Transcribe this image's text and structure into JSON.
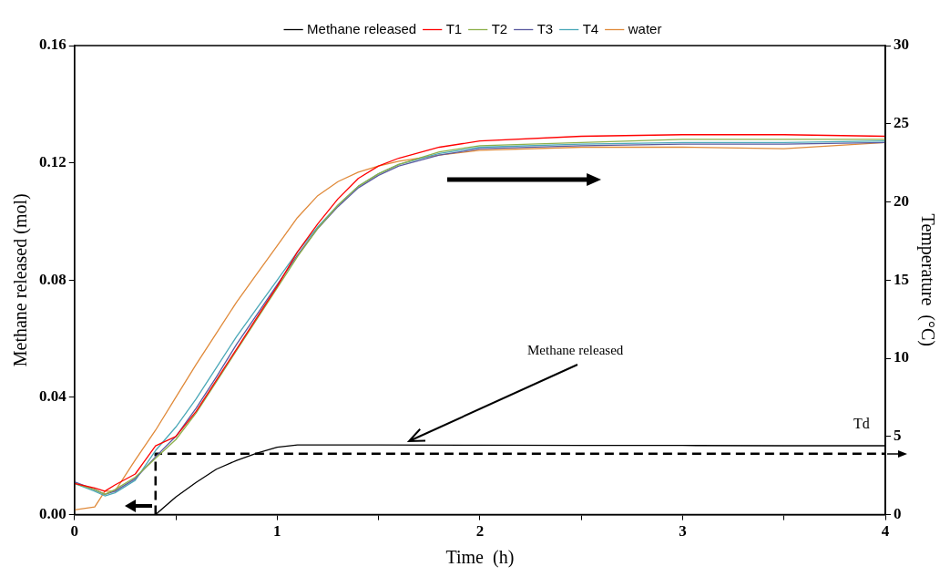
{
  "chart_data": {
    "type": "line",
    "xlabel": "Time  (h)",
    "ylabel": "Methane released (mol)",
    "y2label": "Temperature  (°C)",
    "x": [
      0,
      0.1,
      0.15,
      0.2,
      0.3,
      0.4,
      0.5,
      0.6,
      0.7,
      0.8,
      0.9,
      1.0,
      1.1,
      1.2,
      1.3,
      1.4,
      1.5,
      1.6,
      1.8,
      2.0,
      2.5,
      3.0,
      3.5,
      4.0
    ],
    "series": [
      {
        "name": "Methane released",
        "color": "#000000",
        "x": [
          0,
          0.4,
          0.5,
          0.6,
          0.7,
          0.8,
          0.9,
          1.0,
          1.1,
          1.5,
          2,
          2.5,
          3,
          3.5,
          4
        ],
        "values": [
          0,
          0,
          0.006,
          0.011,
          0.0155,
          0.0185,
          0.021,
          0.023,
          0.0238,
          0.0238,
          0.0237,
          0.0236,
          0.0236,
          0.0235,
          0.0235
        ]
      },
      {
        "name": "T1",
        "color": "#ff0000",
        "axis": "y2",
        "values": [
          2.0,
          1.7,
          1.5,
          1.9,
          2.6,
          4.4,
          5.0,
          6.6,
          8.6,
          10.6,
          12.6,
          14.6,
          16.8,
          18.6,
          20.2,
          21.5,
          22.3,
          22.8,
          23.5,
          23.9,
          24.2,
          24.3,
          24.3,
          24.2
        ]
      },
      {
        "name": "T2",
        "color": "#8db04a",
        "axis": "y2",
        "values": [
          2.0,
          1.6,
          1.3,
          1.6,
          2.4,
          3.6,
          4.8,
          6.5,
          8.5,
          10.5,
          12.5,
          14.5,
          16.5,
          18.3,
          19.8,
          21.0,
          21.8,
          22.4,
          23.2,
          23.6,
          23.8,
          24.0,
          24.0,
          24.0
        ]
      },
      {
        "name": "T3",
        "color": "#5a5aa0",
        "axis": "y2",
        "values": [
          2.1,
          1.6,
          1.3,
          1.5,
          2.3,
          3.7,
          5.0,
          6.8,
          8.8,
          10.9,
          12.8,
          14.7,
          16.6,
          18.3,
          19.7,
          20.9,
          21.7,
          22.3,
          23.0,
          23.4,
          23.6,
          23.7,
          23.7,
          23.8
        ]
      },
      {
        "name": "T4",
        "color": "#4aa8b8",
        "axis": "y2",
        "values": [
          2.0,
          1.5,
          1.2,
          1.4,
          2.2,
          4.1,
          5.6,
          7.4,
          9.4,
          11.4,
          13.2,
          15.0,
          16.8,
          18.4,
          19.8,
          21.0,
          21.8,
          22.4,
          23.1,
          23.5,
          23.7,
          23.8,
          23.8,
          23.9
        ]
      },
      {
        "name": "water",
        "color": "#e08a3a",
        "axis": "y2",
        "values": [
          0.3,
          0.5,
          1.5,
          1.5,
          3.5,
          5.4,
          7.5,
          9.6,
          11.6,
          13.6,
          15.4,
          17.2,
          19.0,
          20.4,
          21.3,
          21.9,
          22.3,
          22.6,
          23.0,
          23.3,
          23.5,
          23.5,
          23.4,
          23.8
        ]
      },
      {
        "color": "#000000",
        "axis": "y2",
        "line_style": "dashed",
        "x": [
          0.4,
          0.4,
          4
        ],
        "values": [
          0,
          3.9,
          3.9
        ]
      }
    ],
    "annotations": [
      {
        "text": "Methane released",
        "x": 1.65,
        "y": 0.0238
      },
      "Td"
    ],
    "xlim": [
      0,
      4
    ],
    "xticks": [
      0,
      {
        "value": 0.5,
        "label": null
      },
      1,
      {
        "value": 1.5,
        "label": null
      },
      2,
      {
        "value": 2.5,
        "label": null
      },
      3,
      {
        "value": 3.5,
        "label": null
      },
      4
    ],
    "ylim": [
      0,
      0.16
    ],
    "yticks": [
      {
        "value": 0,
        "label": "0.00"
      },
      0.04,
      0.08,
      0.12,
      0.16
    ],
    "y2lim": [
      0,
      30
    ],
    "y2ticks": [
      0,
      5,
      10,
      15,
      20,
      25,
      30
    ],
    "grid": false,
    "legend": "top",
    "marker": "none",
    "line_style": "solid"
  }
}
